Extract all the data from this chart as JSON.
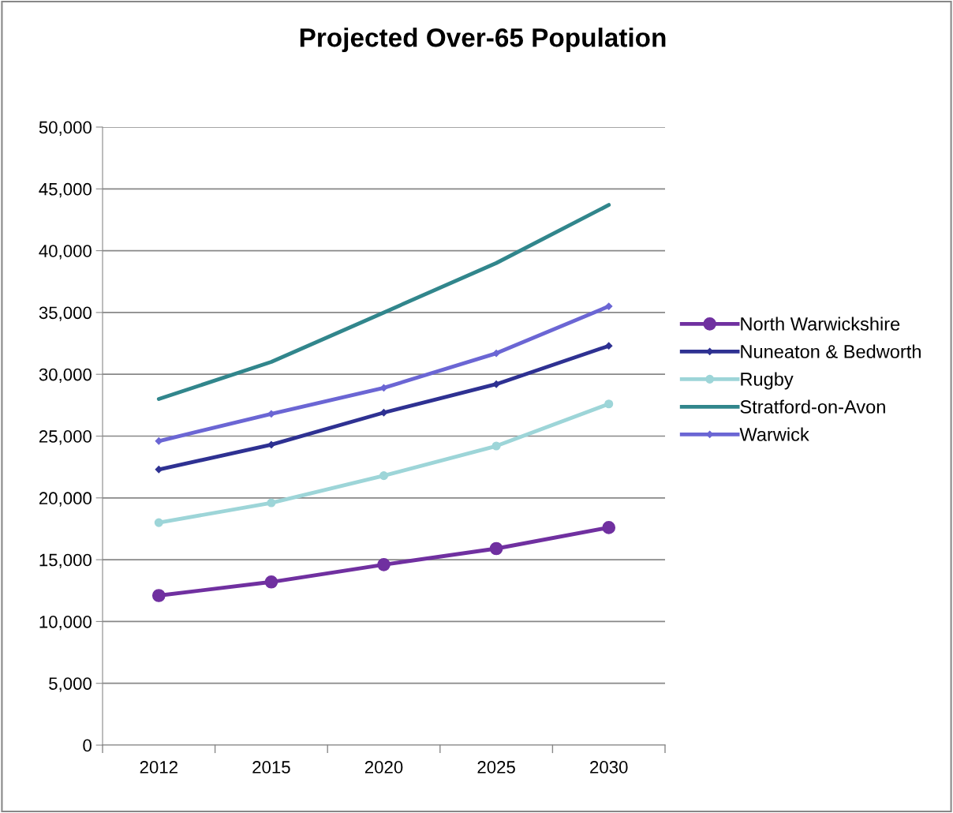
{
  "chart_data": {
    "type": "line",
    "title": "Projected Over-65 Population",
    "categories": [
      "2012",
      "2015",
      "2020",
      "2025",
      "2030"
    ],
    "series": [
      {
        "name": "North Warwickshire",
        "color": "#7030a0",
        "marker": "circle",
        "values": [
          12100,
          13200,
          14600,
          15900,
          17600
        ]
      },
      {
        "name": "Nuneaton & Bedworth",
        "color": "#2e3192",
        "marker": "diamond",
        "values": [
          22300,
          24300,
          26900,
          29200,
          32300
        ]
      },
      {
        "name": "Rugby",
        "color": "#9dd5d8",
        "marker": "circle",
        "values": [
          18000,
          19600,
          21800,
          24200,
          27600
        ]
      },
      {
        "name": "Stratford-on-Avon",
        "color": "#31868c",
        "marker": "none",
        "values": [
          28000,
          31000,
          35000,
          39000,
          43700
        ]
      },
      {
        "name": "Warwick",
        "color": "#6b66d4",
        "marker": "diamond",
        "values": [
          24600,
          26800,
          28900,
          31700,
          35500
        ]
      }
    ],
    "ylim": [
      0,
      50000
    ],
    "yticks": [
      {
        "value": 0,
        "label": "0"
      },
      {
        "value": 5000,
        "label": "5,000"
      },
      {
        "value": 10000,
        "label": "10,000"
      },
      {
        "value": 15000,
        "label": "15,000"
      },
      {
        "value": 20000,
        "label": "20,000"
      },
      {
        "value": 25000,
        "label": "25,000"
      },
      {
        "value": 30000,
        "label": "30,000"
      },
      {
        "value": 35000,
        "label": "35,000"
      },
      {
        "value": 40000,
        "label": "40,000"
      },
      {
        "value": 45000,
        "label": "45,000"
      },
      {
        "value": 50000,
        "label": "50,000"
      }
    ],
    "grid": "y",
    "legend": "right",
    "line_style": "solid"
  }
}
